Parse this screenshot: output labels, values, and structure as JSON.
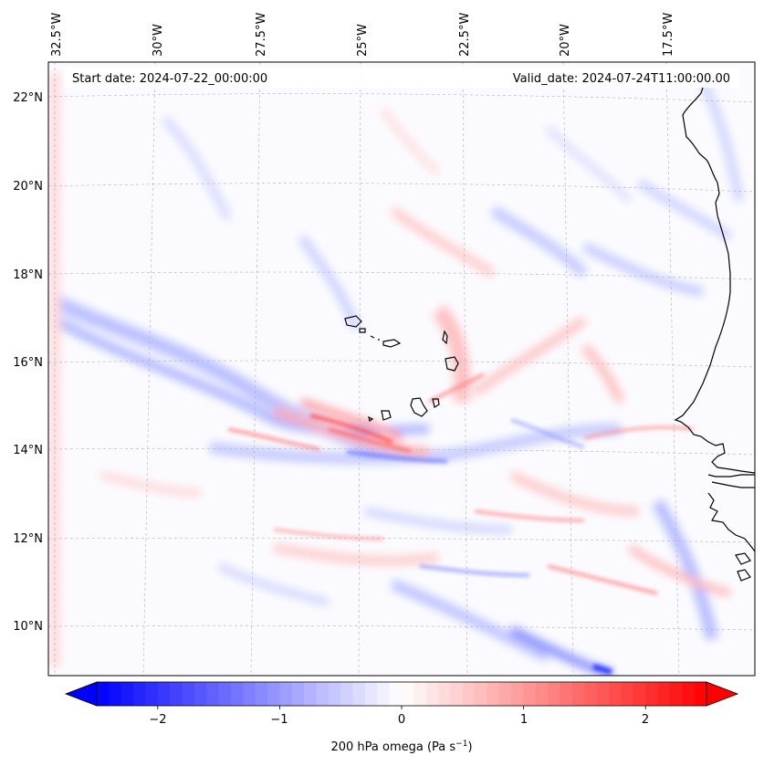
{
  "map": {
    "start_date": "Start date: 2024-07-22_00:00:00",
    "valid_date": "Valid_date: 2024-07-24T11:00:00.00",
    "lon_labels": [
      "32.5°W",
      "30°W",
      "27.5°W",
      "25°W",
      "22.5°W",
      "20°W",
      "17.5°W"
    ],
    "lat_labels": [
      "22°N",
      "20°N",
      "18°N",
      "16°N",
      "14°N",
      "12°N",
      "10°N"
    ],
    "lon_values": [
      -32.5,
      -30,
      -27.5,
      -25,
      -22.5,
      -20,
      -17.5
    ],
    "lat_values": [
      22,
      20,
      18,
      16,
      14,
      12,
      10
    ],
    "extent": {
      "lon_min": -32.7,
      "lon_max": -15.3,
      "lat_min": 8.9,
      "lat_max": 22.8
    },
    "field": "200 hPa omega",
    "colors": {
      "negative": "#0000ff",
      "neutral": "#ffffff",
      "positive": "#ff0000",
      "coast": "#000000",
      "grid": "#b0b0b0"
    }
  },
  "colorbar": {
    "label_main": "200 hPa omega (Pa s",
    "label_sup": "−1",
    "label_close": ")",
    "ticks": [
      "−2",
      "−1",
      "0",
      "1",
      "2"
    ],
    "tick_values": [
      -2,
      -1,
      0,
      1,
      2
    ],
    "vmin": -2.5,
    "vmax": 2.5,
    "n_levels": 50
  }
}
